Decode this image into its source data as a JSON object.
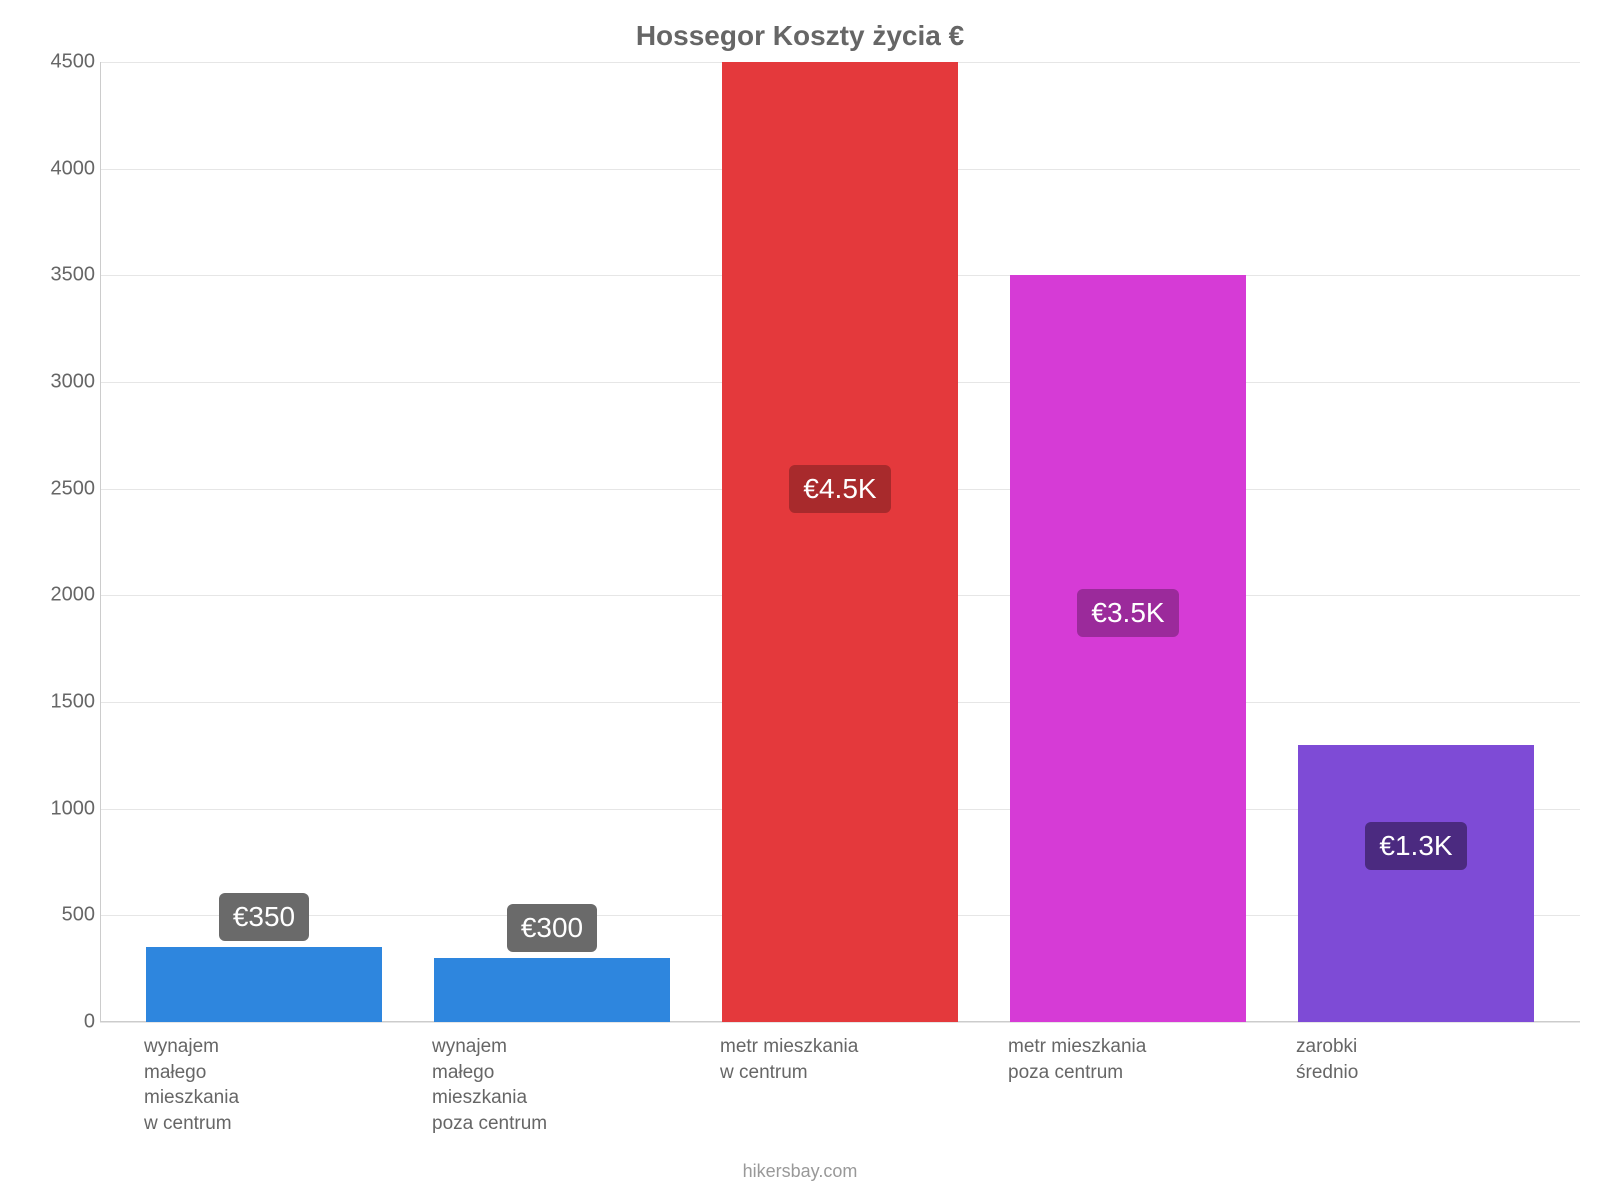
{
  "chart": {
    "type": "bar",
    "title": "Hossegor Koszty życia €",
    "title_fontsize": 28,
    "title_color": "#666666",
    "background_color": "#ffffff",
    "grid_color": "#e6e6e6",
    "axis_line_color": "#cccccc",
    "tick_label_color": "#666666",
    "tick_fontsize": 20,
    "xlabel_fontsize": 19,
    "xlabel_color": "#666666",
    "attribution": "hikersbay.com",
    "attribution_color": "#999999",
    "ylim": [
      0,
      4500
    ],
    "ytick_step": 500,
    "yticks": [
      0,
      500,
      1000,
      1500,
      2000,
      2500,
      3000,
      3500,
      4000,
      4500
    ],
    "bar_width_ratio": 0.82,
    "value_label_fontsize": 28,
    "value_label_text_color": "#ffffff",
    "categories": [
      {
        "lines": [
          "wynajem",
          "małego",
          "mieszkania",
          "w centrum"
        ],
        "value": 350,
        "value_label": "€350",
        "bar_color": "#2E86DE",
        "label_bg": "#6a6a6a",
        "label_position": "above"
      },
      {
        "lines": [
          "wynajem",
          "małego",
          "mieszkania",
          "poza centrum"
        ],
        "value": 300,
        "value_label": "€300",
        "bar_color": "#2E86DE",
        "label_bg": "#6a6a6a",
        "label_position": "above"
      },
      {
        "lines": [
          "metr mieszkania",
          "w centrum"
        ],
        "value": 4500,
        "value_label": "€4.5K",
        "bar_color": "#E4393C",
        "label_bg": "#a82a2c",
        "label_position": "center"
      },
      {
        "lines": [
          "metr mieszkania",
          "poza centrum"
        ],
        "value": 3500,
        "value_label": "€3.5K",
        "bar_color": "#D63BD6",
        "label_bg": "#9b2a9b",
        "label_position": "center"
      },
      {
        "lines": [
          "zarobki",
          "średnio"
        ],
        "value": 1300,
        "value_label": "€1.3K",
        "bar_color": "#7E4BD6",
        "label_bg": "#4b2a80",
        "label_position": "center-low"
      }
    ]
  }
}
